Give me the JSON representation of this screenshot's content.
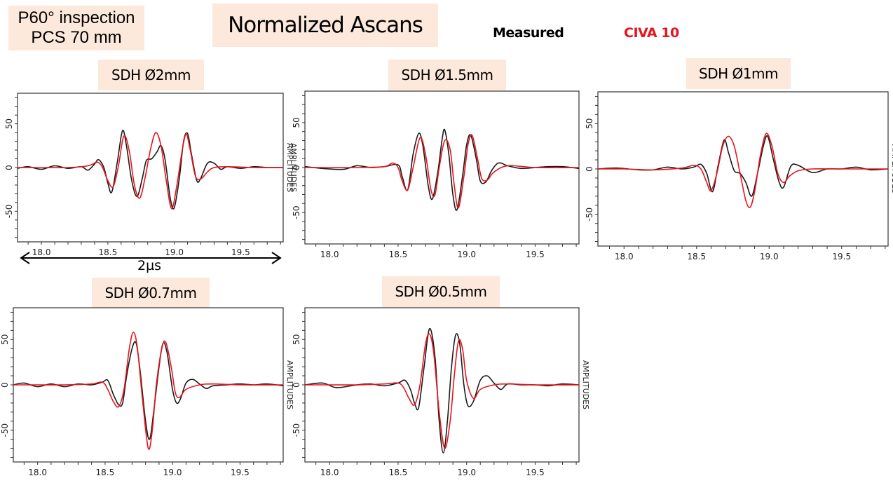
{
  "header": {
    "inspection_line1": "P60° inspection",
    "inspection_line2": "PCS 70 mm",
    "title": "Normalized Ascans"
  },
  "legend": {
    "measured": {
      "label": "Measured",
      "color": "#1a1a1a"
    },
    "simulated": {
      "label": "CIVA 10",
      "color": "#e8141c"
    }
  },
  "dimension": {
    "label": "2µs"
  },
  "axis_label": "AMPLITUDES",
  "chart_data": [
    {
      "type": "line",
      "title": "SDH Ø2mm",
      "xlabel": "",
      "ylabel": "AMPLITUDES",
      "xlim": [
        17.82,
        19.82
      ],
      "ylim": [
        -85,
        85
      ],
      "xticks": [
        18.0,
        18.5,
        19.0,
        19.5
      ],
      "yticks": [
        -50,
        0,
        50
      ],
      "grid": false,
      "series": [
        {
          "name": "Measured",
          "color": "#1a1a1a",
          "x": [
            17.82,
            17.9,
            18.0,
            18.1,
            18.2,
            18.3,
            18.35,
            18.4,
            18.43,
            18.47,
            18.5,
            18.53,
            18.57,
            18.61,
            18.64,
            18.68,
            18.72,
            18.76,
            18.79,
            18.83,
            18.87,
            18.9,
            18.93,
            18.97,
            19.0,
            19.04,
            19.07,
            19.1,
            19.13,
            19.17,
            19.2,
            19.25,
            19.3,
            19.35,
            19.4,
            19.5,
            19.6,
            19.7,
            19.82
          ],
          "y": [
            -1,
            1,
            -2,
            2,
            -1,
            1,
            -3,
            4,
            9,
            0,
            -18,
            -28,
            5,
            42,
            25,
            -15,
            -33,
            -12,
            8,
            10,
            18,
            25,
            10,
            -35,
            -46,
            -10,
            30,
            39,
            15,
            -15,
            -12,
            5,
            5,
            -2,
            1,
            -1,
            1,
            0,
            0
          ]
        },
        {
          "name": "CIVA 10",
          "color": "#e8141c",
          "x": [
            17.82,
            18.0,
            18.2,
            18.35,
            18.42,
            18.46,
            18.5,
            18.54,
            18.58,
            18.62,
            18.66,
            18.7,
            18.74,
            18.78,
            18.82,
            18.86,
            18.9,
            18.94,
            18.98,
            19.02,
            19.06,
            19.09,
            19.12,
            19.16,
            19.2,
            19.25,
            19.3,
            19.4,
            19.6,
            19.82
          ],
          "y": [
            0,
            0,
            0,
            2,
            6,
            0,
            -15,
            -22,
            2,
            36,
            20,
            -20,
            -35,
            -12,
            20,
            40,
            25,
            -15,
            -47,
            -20,
            20,
            38,
            20,
            -10,
            -13,
            -5,
            0,
            1,
            0,
            0
          ]
        }
      ]
    },
    {
      "type": "line",
      "title": "SDH Ø1.5mm",
      "xlabel": "",
      "ylabel": "AMPLITUDES",
      "xlim": [
        17.82,
        19.82
      ],
      "ylim": [
        -85,
        85
      ],
      "xticks": [
        18.0,
        18.5,
        19.0,
        19.5
      ],
      "yticks": [
        -50,
        0,
        50
      ],
      "grid": false,
      "series": [
        {
          "name": "Measured",
          "color": "#1a1a1a",
          "x": [
            17.82,
            17.95,
            18.1,
            18.2,
            18.3,
            18.4,
            18.5,
            18.53,
            18.57,
            18.61,
            18.65,
            18.68,
            18.72,
            18.75,
            18.79,
            18.82,
            18.84,
            18.87,
            18.9,
            18.93,
            18.97,
            19.0,
            19.03,
            19.07,
            19.1,
            19.14,
            19.18,
            19.22,
            19.25,
            19.3,
            19.4,
            19.5,
            19.6,
            19.7,
            19.82
          ],
          "y": [
            1,
            -1,
            -2,
            2,
            0,
            1,
            3,
            -10,
            -25,
            15,
            38,
            25,
            -20,
            -35,
            -5,
            30,
            42,
            15,
            -30,
            -47,
            -10,
            25,
            36,
            10,
            -15,
            -16,
            -4,
            4,
            5,
            2,
            -1,
            0,
            1,
            1,
            -1
          ]
        },
        {
          "name": "CIVA 10",
          "color": "#e8141c",
          "x": [
            17.82,
            18.0,
            18.2,
            18.4,
            18.46,
            18.5,
            18.53,
            18.57,
            18.61,
            18.66,
            18.7,
            18.74,
            18.77,
            18.8,
            18.84,
            18.88,
            18.91,
            18.94,
            18.98,
            19.01,
            19.04,
            19.08,
            19.11,
            19.15,
            19.2,
            19.3,
            19.5,
            19.82
          ],
          "y": [
            0,
            0,
            0,
            1,
            5,
            0,
            -15,
            -25,
            0,
            33,
            15,
            -25,
            -30,
            0,
            30,
            20,
            -20,
            -45,
            -10,
            25,
            36,
            10,
            -12,
            -14,
            -5,
            2,
            0,
            0
          ]
        }
      ]
    },
    {
      "type": "line",
      "title": "SDH Ø1mm",
      "xlabel": "",
      "ylabel": "AMPLITUDES",
      "xlim": [
        17.82,
        19.82
      ],
      "ylim": [
        -85,
        85
      ],
      "xticks": [
        18.0,
        18.5,
        19.0,
        19.5
      ],
      "yticks": [
        -50,
        0,
        50
      ],
      "grid": false,
      "series": [
        {
          "name": "Measured",
          "color": "#1a1a1a",
          "x": [
            17.82,
            17.95,
            18.1,
            18.2,
            18.3,
            18.4,
            18.48,
            18.53,
            18.57,
            18.61,
            18.65,
            18.69,
            18.72,
            18.76,
            18.8,
            18.84,
            18.88,
            18.92,
            18.96,
            18.99,
            19.03,
            19.07,
            19.1,
            19.15,
            19.2,
            19.3,
            19.4,
            19.5,
            19.6,
            19.7,
            19.82
          ],
          "y": [
            0,
            1,
            -1,
            -1,
            2,
            0,
            2,
            5,
            -5,
            -25,
            5,
            32,
            18,
            -2,
            -5,
            -15,
            -30,
            -5,
            25,
            36,
            10,
            -15,
            -20,
            3,
            4,
            -4,
            0,
            0,
            2,
            -1,
            0
          ]
        },
        {
          "name": "CIVA 10",
          "color": "#e8141c",
          "x": [
            17.82,
            18.0,
            18.2,
            18.4,
            18.48,
            18.53,
            18.57,
            18.6,
            18.64,
            18.68,
            18.72,
            18.76,
            18.8,
            18.84,
            18.87,
            18.9,
            18.94,
            18.98,
            19.02,
            19.06,
            19.1,
            19.14,
            19.2,
            19.3,
            19.5,
            19.82
          ],
          "y": [
            0,
            0,
            -1,
            1,
            4,
            0,
            -15,
            -24,
            -5,
            25,
            36,
            25,
            -5,
            -35,
            -42,
            -25,
            15,
            39,
            25,
            -5,
            -15,
            -8,
            -2,
            0,
            0,
            0
          ]
        }
      ]
    },
    {
      "type": "line",
      "title": "SDH Ø0.7mm",
      "xlabel": "",
      "ylabel": "AMPLITUDES",
      "xlim": [
        17.82,
        19.82
      ],
      "ylim": [
        -85,
        85
      ],
      "xticks": [
        18.0,
        18.5,
        19.0,
        19.5
      ],
      "yticks": [
        -50,
        0,
        50
      ],
      "grid": false,
      "series": [
        {
          "name": "Measured",
          "color": "#1a1a1a",
          "x": [
            17.82,
            17.9,
            18.0,
            18.1,
            18.2,
            18.3,
            18.4,
            18.48,
            18.52,
            18.56,
            18.6,
            18.63,
            18.66,
            18.7,
            18.73,
            18.76,
            18.8,
            18.83,
            18.86,
            18.9,
            18.93,
            18.96,
            19.0,
            19.03,
            19.06,
            19.1,
            19.15,
            19.2,
            19.25,
            19.3,
            19.4,
            19.5,
            19.6,
            19.7,
            19.82
          ],
          "y": [
            0,
            2,
            -2,
            1,
            -2,
            1,
            0,
            3,
            5,
            -10,
            -22,
            -20,
            10,
            40,
            46,
            15,
            -40,
            -60,
            -30,
            20,
            46,
            35,
            -5,
            -20,
            -15,
            2,
            6,
            1,
            -4,
            -1,
            0,
            1,
            0,
            1,
            -1
          ]
        },
        {
          "name": "CIVA 10",
          "color": "#e8141c",
          "x": [
            17.82,
            18.0,
            18.2,
            18.4,
            18.48,
            18.52,
            18.56,
            18.6,
            18.64,
            18.68,
            18.71,
            18.74,
            18.78,
            18.82,
            18.85,
            18.88,
            18.92,
            18.95,
            18.99,
            19.02,
            19.05,
            19.1,
            19.2,
            19.3,
            19.5,
            19.82
          ],
          "y": [
            0,
            0,
            0,
            1,
            3,
            -5,
            -18,
            -24,
            -5,
            40,
            58,
            40,
            -20,
            -70,
            -50,
            0,
            40,
            47,
            20,
            -8,
            -14,
            -5,
            0,
            1,
            0,
            0
          ]
        }
      ]
    },
    {
      "type": "line",
      "title": "SDH Ø0.5mm",
      "xlabel": "",
      "ylabel": "AMPLITUDES",
      "xlim": [
        17.82,
        19.82
      ],
      "ylim": [
        -85,
        85
      ],
      "xticks": [
        18.0,
        18.5,
        19.0,
        19.5
      ],
      "yticks": [
        -50,
        0,
        50
      ],
      "grid": false,
      "series": [
        {
          "name": "Measured",
          "color": "#1a1a1a",
          "x": [
            17.82,
            17.95,
            18.05,
            18.2,
            18.3,
            18.4,
            18.5,
            18.55,
            18.59,
            18.62,
            18.65,
            18.69,
            18.73,
            18.77,
            18.8,
            18.83,
            18.86,
            18.89,
            18.92,
            18.95,
            18.98,
            19.01,
            19.05,
            19.1,
            19.15,
            19.2,
            19.25,
            19.3,
            19.4,
            19.5,
            19.6,
            19.7,
            19.82
          ],
          "y": [
            0,
            2,
            -3,
            0,
            1,
            -1,
            2,
            5,
            -5,
            -20,
            -25,
            20,
            62,
            30,
            -40,
            -75,
            -40,
            20,
            55,
            45,
            0,
            -23,
            -18,
            5,
            10,
            2,
            -5,
            1,
            0,
            0,
            -1,
            1,
            0
          ]
        },
        {
          "name": "CIVA 10",
          "color": "#e8141c",
          "x": [
            17.82,
            18.0,
            18.2,
            18.4,
            18.5,
            18.54,
            18.58,
            18.62,
            18.66,
            18.7,
            18.73,
            18.76,
            18.8,
            18.84,
            18.88,
            18.91,
            18.94,
            18.97,
            19.0,
            19.05,
            19.1,
            19.2,
            19.3,
            19.5,
            19.82
          ],
          "y": [
            0,
            0,
            0,
            1,
            2,
            -3,
            -15,
            -22,
            0,
            45,
            56,
            35,
            -30,
            -70,
            -40,
            10,
            48,
            40,
            5,
            -15,
            -5,
            0,
            1,
            0,
            0
          ]
        }
      ]
    }
  ]
}
